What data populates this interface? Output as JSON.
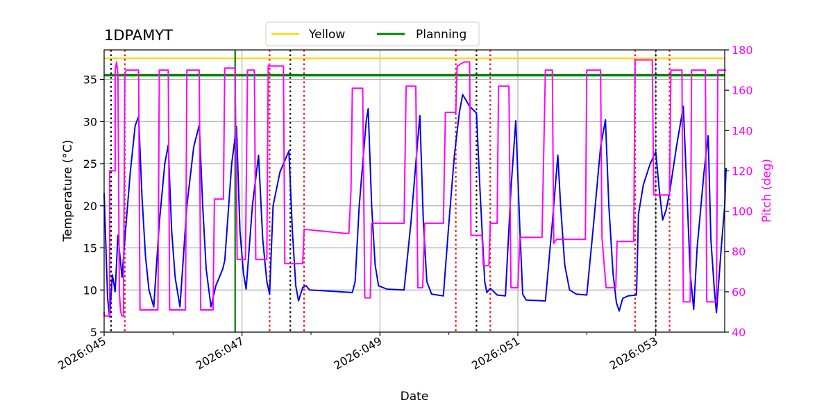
{
  "chart_data": {
    "type": "line",
    "title": "1DPAMYT",
    "xlabel": "Date",
    "ylabel": "Temperature ($^\\circ$C)",
    "ylabel_display": "Temperature (°C)",
    "y2label": "Pitch (deg)",
    "xlim": [
      45.0,
      54.0
    ],
    "ylim": [
      5,
      38.5
    ],
    "y2lim": [
      40,
      180
    ],
    "x_ticks": [
      {
        "value": 45,
        "label": "2026:045"
      },
      {
        "value": 47,
        "label": "2026:047"
      },
      {
        "value": 49,
        "label": "2026:049"
      },
      {
        "value": 51,
        "label": "2026:051"
      },
      {
        "value": 53,
        "label": "2026:053"
      }
    ],
    "x_minor_ticks": [
      46,
      48,
      50,
      52
    ],
    "y_ticks": [
      5,
      10,
      15,
      20,
      25,
      30,
      35
    ],
    "y2_ticks": [
      40,
      60,
      80,
      100,
      120,
      140,
      160,
      180
    ],
    "grid": true,
    "legend": {
      "placement": "top-center",
      "entries": [
        {
          "name": "Yellow",
          "color": "#ffd700"
        },
        {
          "name": "Planning",
          "color": "#008000"
        }
      ]
    },
    "limits": [
      {
        "name": "Yellow",
        "value": 37.5,
        "color": "#ffd700"
      },
      {
        "name": "Planning",
        "value": 35.5,
        "color": "#008000"
      }
    ],
    "vertical_markers": {
      "black_dotted": [
        45.1,
        47.7,
        50.4,
        53.0
      ],
      "red_dotted": [
        45.3,
        47.4,
        47.9,
        50.1,
        50.6,
        52.7,
        53.2
      ],
      "green_solid": [
        46.9
      ]
    },
    "series": [
      {
        "name": "Temperature",
        "axis": "left",
        "color": "#0000ee",
        "points": [
          [
            45.0,
            21.5
          ],
          [
            45.05,
            9.0
          ],
          [
            45.08,
            6.8
          ],
          [
            45.12,
            11.8
          ],
          [
            45.16,
            9.8
          ],
          [
            45.2,
            16.5
          ],
          [
            45.26,
            11.5
          ],
          [
            45.3,
            16.0
          ],
          [
            45.38,
            24.0
          ],
          [
            45.45,
            29.5
          ],
          [
            45.5,
            30.6
          ],
          [
            45.55,
            21.0
          ],
          [
            45.6,
            14.0
          ],
          [
            45.65,
            10.0
          ],
          [
            45.72,
            8.0
          ],
          [
            45.8,
            18.0
          ],
          [
            45.88,
            25.0
          ],
          [
            45.93,
            27.2
          ],
          [
            45.98,
            17.0
          ],
          [
            46.03,
            11.5
          ],
          [
            46.1,
            8.0
          ],
          [
            46.2,
            20.0
          ],
          [
            46.3,
            27.0
          ],
          [
            46.38,
            29.6
          ],
          [
            46.43,
            20.0
          ],
          [
            46.48,
            12.5
          ],
          [
            46.55,
            8.0
          ],
          [
            46.62,
            10.5
          ],
          [
            46.72,
            12.5
          ],
          [
            46.75,
            13.5
          ],
          [
            46.85,
            25.0
          ],
          [
            46.92,
            29.4
          ],
          [
            46.97,
            17.0
          ],
          [
            47.02,
            12.0
          ],
          [
            47.06,
            10.1
          ],
          [
            47.15,
            20.0
          ],
          [
            47.24,
            26.0
          ],
          [
            47.3,
            16.0
          ],
          [
            47.36,
            11.0
          ],
          [
            47.4,
            9.5
          ],
          [
            47.45,
            20.0
          ],
          [
            47.55,
            24.0
          ],
          [
            47.68,
            26.5
          ],
          [
            47.73,
            17.0
          ],
          [
            47.78,
            10.5
          ],
          [
            47.82,
            8.7
          ],
          [
            47.88,
            10.3
          ],
          [
            47.93,
            10.5
          ],
          [
            47.98,
            10.0
          ],
          [
            48.2,
            9.9
          ],
          [
            48.6,
            9.7
          ],
          [
            48.64,
            11.0
          ],
          [
            48.7,
            20.0
          ],
          [
            48.8,
            30.0
          ],
          [
            48.83,
            31.5
          ],
          [
            48.88,
            20.0
          ],
          [
            48.93,
            13.0
          ],
          [
            48.98,
            10.5
          ],
          [
            49.1,
            10.1
          ],
          [
            49.35,
            10.0
          ],
          [
            49.45,
            18.0
          ],
          [
            49.55,
            28.0
          ],
          [
            49.58,
            30.7
          ],
          [
            49.63,
            18.0
          ],
          [
            49.68,
            11.0
          ],
          [
            49.75,
            9.5
          ],
          [
            49.92,
            9.3
          ],
          [
            50.0,
            18.0
          ],
          [
            50.08,
            26.0
          ],
          [
            50.15,
            31.0
          ],
          [
            50.2,
            33.2
          ],
          [
            50.3,
            31.8
          ],
          [
            50.4,
            31.0
          ],
          [
            50.45,
            22.0
          ],
          [
            50.52,
            11.0
          ],
          [
            50.55,
            9.7
          ],
          [
            50.6,
            10.2
          ],
          [
            50.7,
            9.4
          ],
          [
            50.82,
            9.3
          ],
          [
            50.9,
            22.0
          ],
          [
            50.97,
            30.1
          ],
          [
            51.03,
            17.0
          ],
          [
            51.07,
            9.5
          ],
          [
            51.12,
            8.8
          ],
          [
            51.4,
            8.7
          ],
          [
            51.5,
            18.0
          ],
          [
            51.58,
            26.0
          ],
          [
            51.62,
            20.0
          ],
          [
            51.68,
            13.0
          ],
          [
            51.75,
            10.0
          ],
          [
            51.85,
            9.5
          ],
          [
            52.0,
            9.4
          ],
          [
            52.1,
            18.0
          ],
          [
            52.2,
            27.0
          ],
          [
            52.27,
            30.2
          ],
          [
            52.32,
            20.0
          ],
          [
            52.38,
            12.0
          ],
          [
            52.43,
            8.5
          ],
          [
            52.47,
            7.5
          ],
          [
            52.52,
            9.0
          ],
          [
            52.6,
            9.3
          ],
          [
            52.72,
            9.4
          ],
          [
            52.75,
            19.0
          ],
          [
            52.82,
            22.5
          ],
          [
            52.92,
            25.0
          ],
          [
            53.0,
            26.4
          ],
          [
            53.05,
            22.0
          ],
          [
            53.1,
            18.3
          ],
          [
            53.15,
            19.5
          ],
          [
            53.2,
            21.5
          ],
          [
            53.3,
            27.0
          ],
          [
            53.4,
            31.8
          ],
          [
            53.45,
            22.0
          ],
          [
            53.5,
            12.0
          ],
          [
            53.55,
            7.7
          ],
          [
            53.6,
            15.0
          ],
          [
            53.7,
            24.0
          ],
          [
            53.76,
            28.3
          ],
          [
            53.8,
            16.0
          ],
          [
            53.85,
            10.0
          ],
          [
            53.88,
            7.3
          ],
          [
            53.95,
            15.0
          ],
          [
            54.0,
            20.0
          ],
          [
            54.02,
            24.5
          ]
        ]
      },
      {
        "name": "Pitch",
        "axis": "right",
        "color": "#ff00ff",
        "points": [
          [
            45.0,
            50
          ],
          [
            45.0,
            48
          ],
          [
            45.08,
            48
          ],
          [
            45.08,
            120
          ],
          [
            45.16,
            120
          ],
          [
            45.16,
            170
          ],
          [
            45.18,
            174
          ],
          [
            45.2,
            168
          ],
          [
            45.22,
            60
          ],
          [
            45.24,
            50
          ],
          [
            45.26,
            48
          ],
          [
            45.28,
            48
          ],
          [
            45.3,
            168
          ],
          [
            45.32,
            170
          ],
          [
            45.5,
            170
          ],
          [
            45.52,
            51
          ],
          [
            45.72,
            51
          ],
          [
            45.78,
            51
          ],
          [
            45.8,
            170
          ],
          [
            45.93,
            170
          ],
          [
            45.95,
            51
          ],
          [
            46.13,
            51
          ],
          [
            46.18,
            51
          ],
          [
            46.2,
            170
          ],
          [
            46.38,
            170
          ],
          [
            46.4,
            51
          ],
          [
            46.58,
            51
          ],
          [
            46.6,
            106
          ],
          [
            46.73,
            106
          ],
          [
            46.75,
            171
          ],
          [
            46.9,
            171
          ],
          [
            46.93,
            76
          ],
          [
            47.05,
            76
          ],
          [
            47.08,
            170
          ],
          [
            47.18,
            170
          ],
          [
            47.2,
            76
          ],
          [
            47.36,
            76
          ],
          [
            47.38,
            172
          ],
          [
            47.4,
            173
          ],
          [
            47.4,
            172
          ],
          [
            47.6,
            172
          ],
          [
            47.62,
            74
          ],
          [
            47.78,
            74
          ],
          [
            47.88,
            74
          ],
          [
            47.9,
            91
          ],
          [
            48.5,
            89
          ],
          [
            48.55,
            89
          ],
          [
            48.58,
            110
          ],
          [
            48.6,
            161
          ],
          [
            48.75,
            161
          ],
          [
            48.78,
            57
          ],
          [
            48.86,
            57
          ],
          [
            48.88,
            94
          ],
          [
            49.2,
            94
          ],
          [
            49.35,
            94
          ],
          [
            49.38,
            162
          ],
          [
            49.52,
            162
          ],
          [
            49.55,
            62
          ],
          [
            49.62,
            62
          ],
          [
            49.65,
            94
          ],
          [
            49.92,
            94
          ],
          [
            49.95,
            149
          ],
          [
            50.1,
            149
          ],
          [
            50.12,
            172
          ],
          [
            50.22,
            174
          ],
          [
            50.3,
            174
          ],
          [
            50.32,
            88
          ],
          [
            50.48,
            88
          ],
          [
            50.5,
            73
          ],
          [
            50.58,
            73
          ],
          [
            50.6,
            94
          ],
          [
            50.7,
            94
          ],
          [
            50.72,
            162
          ],
          [
            50.87,
            162
          ],
          [
            50.9,
            62
          ],
          [
            51.0,
            62
          ],
          [
            51.03,
            87
          ],
          [
            51.35,
            87
          ],
          [
            51.4,
            170
          ],
          [
            51.5,
            170
          ],
          [
            51.52,
            84
          ],
          [
            51.56,
            86
          ],
          [
            51.9,
            86
          ],
          [
            51.98,
            86
          ],
          [
            52.0,
            170
          ],
          [
            52.2,
            170
          ],
          [
            52.22,
            87
          ],
          [
            52.28,
            62
          ],
          [
            52.42,
            62
          ],
          [
            52.44,
            85
          ],
          [
            52.68,
            85
          ],
          [
            52.7,
            175
          ],
          [
            52.95,
            175
          ],
          [
            52.97,
            108
          ],
          [
            53.2,
            108
          ],
          [
            53.22,
            170
          ],
          [
            53.38,
            170
          ],
          [
            53.4,
            55
          ],
          [
            53.5,
            55
          ],
          [
            53.52,
            170
          ],
          [
            53.72,
            170
          ],
          [
            53.74,
            55
          ],
          [
            53.88,
            55
          ],
          [
            53.9,
            170
          ],
          [
            54.02,
            170
          ]
        ]
      }
    ]
  }
}
